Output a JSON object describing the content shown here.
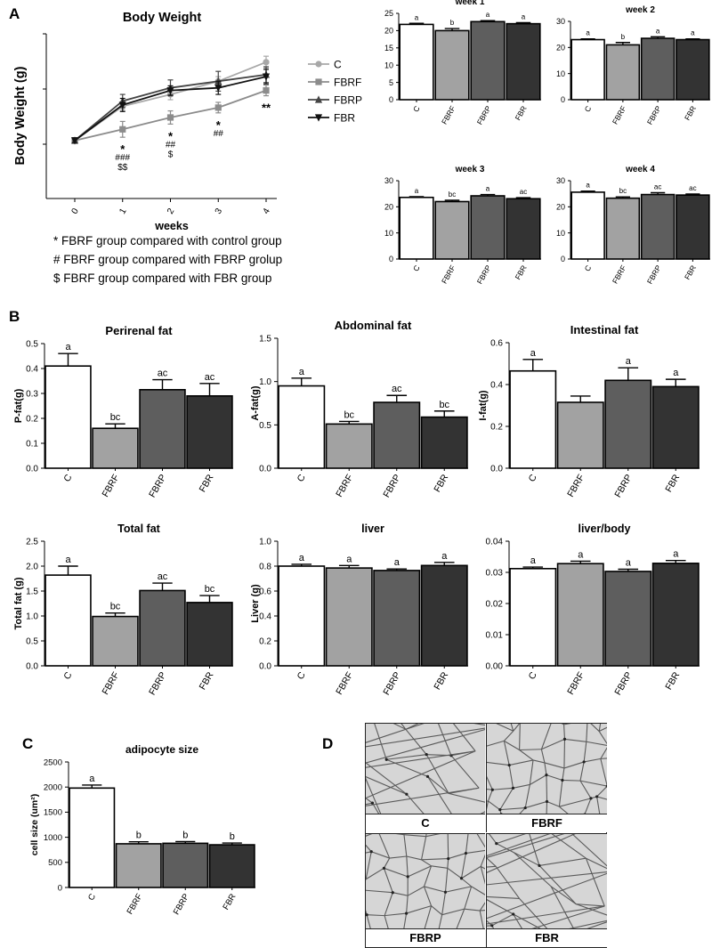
{
  "panels": {
    "a": "A",
    "b": "B",
    "c": "C",
    "d": "D"
  },
  "notes": [
    "* FBRF group compared with control group",
    "# FBRF group compared with FBRP grolup",
    "$ FBRF group compared with FBR group"
  ],
  "micrographs": {
    "labels": [
      "C",
      "FBRF",
      "FBRP",
      "FBR"
    ]
  },
  "chart_data": [
    {
      "id": "body-weight",
      "type": "line",
      "title": "Body Weight",
      "xlabel": "weeks",
      "ylabel": "Body Weight (g)",
      "x": [
        0,
        1,
        2,
        3,
        4
      ],
      "ylim": [
        10,
        35
      ],
      "yticks": [],
      "legend": "right",
      "series": [
        {
          "name": "C",
          "marker": "circle",
          "color": "#a8a8a8",
          "values": [
            18.8,
            24.0,
            25.8,
            27.8,
            30.7
          ],
          "errors": [
            0.4,
            0.6,
            0.8,
            0.7,
            0.9
          ]
        },
        {
          "name": "FBRF",
          "marker": "square",
          "color": "#8c8c8c",
          "values": [
            18.8,
            20.5,
            22.3,
            23.8,
            26.4
          ],
          "errors": [
            0.4,
            1.2,
            1.0,
            0.8,
            0.8
          ]
        },
        {
          "name": "FBRP",
          "marker": "triangle",
          "color": "#444444",
          "values": [
            18.8,
            24.8,
            26.8,
            27.8,
            28.8
          ],
          "errors": [
            0.4,
            1.0,
            1.2,
            1.5,
            1.2
          ]
        },
        {
          "name": "FBR",
          "marker": "triangle-down",
          "color": "#111111",
          "values": [
            18.8,
            24.2,
            26.4,
            26.8,
            28.5
          ],
          "errors": [
            0.4,
            1.0,
            0.7,
            1.0,
            1.1
          ]
        }
      ],
      "annotations": [
        {
          "x": 1,
          "lines": [
            "*",
            "###",
            "$$"
          ]
        },
        {
          "x": 2,
          "lines": [
            "*",
            "##",
            "$"
          ]
        },
        {
          "x": 3,
          "lines": [
            "*",
            "##"
          ]
        },
        {
          "x": 4,
          "lines": [
            "**"
          ]
        }
      ]
    },
    {
      "id": "week1",
      "type": "bar",
      "title": "week 1",
      "categories": [
        "C",
        "FBRF",
        "FBRP",
        "FBR"
      ],
      "values": [
        21.8,
        20.0,
        22.6,
        22.0
      ],
      "errors": [
        0.3,
        0.6,
        0.3,
        0.3
      ],
      "letters": [
        "a",
        "b",
        "a",
        "a"
      ],
      "ylim": [
        0,
        25
      ],
      "yticks": [
        "0",
        "5",
        "10",
        "15",
        "20",
        "25"
      ]
    },
    {
      "id": "week2",
      "type": "bar",
      "title": "week 2",
      "categories": [
        "C",
        "FBRF",
        "FBRP",
        "FBR"
      ],
      "values": [
        23.0,
        21.0,
        23.5,
        23.0
      ],
      "errors": [
        0.3,
        0.9,
        0.6,
        0.3
      ],
      "letters": [
        "a",
        "b",
        "a",
        "a"
      ],
      "ylim": [
        0,
        30
      ],
      "yticks": [
        "0",
        "10",
        "20",
        "30"
      ]
    },
    {
      "id": "week3",
      "type": "bar",
      "title": "week 3",
      "categories": [
        "C",
        "FBRF",
        "FBRP",
        "FBR"
      ],
      "values": [
        23.6,
        22.0,
        24.2,
        23.1
      ],
      "errors": [
        0.3,
        0.5,
        0.5,
        0.4
      ],
      "letters": [
        "a",
        "bc",
        "a",
        "ac"
      ],
      "ylim": [
        0,
        30
      ],
      "yticks": [
        "0",
        "10",
        "20",
        "30"
      ]
    },
    {
      "id": "week4",
      "type": "bar",
      "title": "week 4",
      "categories": [
        "C",
        "FBRF",
        "FBRP",
        "FBR"
      ],
      "values": [
        25.6,
        23.3,
        24.7,
        24.5
      ],
      "errors": [
        0.4,
        0.5,
        0.7,
        0.4
      ],
      "letters": [
        "a",
        "bc",
        "ac",
        "ac"
      ],
      "ylim": [
        0,
        30
      ],
      "yticks": [
        "0",
        "10",
        "20",
        "30"
      ]
    },
    {
      "id": "perirenal",
      "type": "bar",
      "title": "Perirenal fat",
      "ylabel": "P-fat(g)",
      "categories": [
        "C",
        "FBRF",
        "FBRP",
        "FBR"
      ],
      "values": [
        0.41,
        0.16,
        0.315,
        0.29
      ],
      "errors": [
        0.05,
        0.018,
        0.04,
        0.05
      ],
      "letters": [
        "a",
        "bc",
        "ac",
        "ac"
      ],
      "ylim": [
        0,
        0.5
      ],
      "yticks": [
        "0.0",
        "0.1",
        "0.2",
        "0.3",
        "0.4",
        "0.5"
      ]
    },
    {
      "id": "abdominal",
      "type": "bar",
      "title": "Abdominal fat",
      "ylabel": "A-fat(g)",
      "categories": [
        "C",
        "FBRF",
        "FBRP",
        "FBR"
      ],
      "values": [
        0.95,
        0.51,
        0.76,
        0.59
      ],
      "errors": [
        0.09,
        0.03,
        0.08,
        0.07
      ],
      "letters": [
        "a",
        "bc",
        "ac",
        "bc"
      ],
      "ylim": [
        0,
        1.5
      ],
      "yticks": [
        "0.0",
        "0.5",
        "1.0",
        "1.5"
      ]
    },
    {
      "id": "intestinal",
      "type": "bar",
      "title": "Intestinal fat",
      "ylabel": "I-fat(g)",
      "categories": [
        "C",
        "FBRF",
        "FBRP",
        "FBR"
      ],
      "values": [
        0.465,
        0.315,
        0.42,
        0.39
      ],
      "errors": [
        0.055,
        0.03,
        0.06,
        0.035
      ],
      "letters": [
        "a",
        "",
        "a",
        "a"
      ],
      "ylim": [
        0,
        0.6
      ],
      "yticks": [
        "0.0",
        "0.2",
        "0.4",
        "0.6"
      ]
    },
    {
      "id": "totalfat",
      "type": "bar",
      "title": "Total fat",
      "ylabel": "Total fat (g)",
      "categories": [
        "C",
        "FBRF",
        "FBRP",
        "FBR"
      ],
      "values": [
        1.82,
        0.99,
        1.51,
        1.27
      ],
      "errors": [
        0.18,
        0.07,
        0.15,
        0.14
      ],
      "letters": [
        "a",
        "bc",
        "ac",
        "bc"
      ],
      "ylim": [
        0,
        2.5
      ],
      "yticks": [
        "0.0",
        "0.5",
        "1.0",
        "1.5",
        "2.0",
        "2.5"
      ]
    },
    {
      "id": "liver",
      "type": "bar",
      "title": "liver",
      "ylabel": "Liver (g)",
      "categories": [
        "C",
        "FBRF",
        "FBRP",
        "FBR"
      ],
      "values": [
        0.8,
        0.785,
        0.765,
        0.805
      ],
      "errors": [
        0.015,
        0.02,
        0.012,
        0.025
      ],
      "letters": [
        "a",
        "a",
        "a",
        "a"
      ],
      "ylim": [
        0,
        1.0
      ],
      "yticks": [
        "0.0",
        "0.2",
        "0.4",
        "0.6",
        "0.8",
        "1.0"
      ]
    },
    {
      "id": "liverbody",
      "type": "bar",
      "title": "liver/body",
      "categories": [
        "C",
        "FBRF",
        "FBRP",
        "FBR"
      ],
      "values": [
        0.0312,
        0.0328,
        0.0303,
        0.0329
      ],
      "errors": [
        0.0005,
        0.0008,
        0.0007,
        0.0009
      ],
      "letters": [
        "a",
        "a",
        "a",
        "a"
      ],
      "ylim": [
        0,
        0.04
      ],
      "yticks": [
        "0.00",
        "0.01",
        "0.02",
        "0.03",
        "0.04"
      ]
    },
    {
      "id": "adipocyte",
      "type": "bar",
      "title": "adipocyte size",
      "ylabel": "cell size (um²)",
      "categories": [
        "C",
        "FBRF",
        "FBRP",
        "FBR"
      ],
      "values": [
        1980,
        870,
        880,
        850
      ],
      "errors": [
        60,
        40,
        35,
        35
      ],
      "letters": [
        "a",
        "b",
        "b",
        "b"
      ],
      "ylim": [
        0,
        2500
      ],
      "yticks": [
        "0",
        "500",
        "1000",
        "1500",
        "2000",
        "2500"
      ]
    }
  ]
}
